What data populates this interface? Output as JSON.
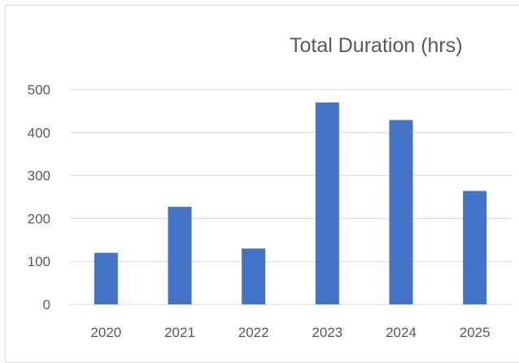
{
  "chart_data": {
    "type": "bar",
    "title": "Total Duration (hrs)",
    "xlabel": "",
    "ylabel": "",
    "categories": [
      "2020",
      "2021",
      "2022",
      "2023",
      "2024",
      "2025"
    ],
    "values": [
      120,
      227,
      130,
      470,
      429,
      264
    ],
    "ylim": [
      0,
      500
    ],
    "yticks": [
      "0",
      "100",
      "200",
      "300",
      "400",
      "500"
    ],
    "grid": true,
    "legend": "none",
    "bar_color": "#4472c4",
    "grid_color": "#d9d9d9",
    "text_color": "#595959"
  }
}
